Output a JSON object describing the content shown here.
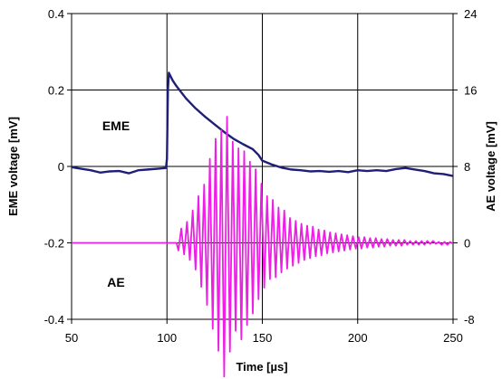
{
  "chart_data": {
    "type": "line",
    "xlabel": "Time [µs]",
    "ylabel_left": "EME voltage [mV]",
    "ylabel_right": "AE voltage [mV]",
    "xlim": [
      50,
      250
    ],
    "ylim_left": [
      -0.4,
      0.4
    ],
    "ylim_right": [
      -8,
      24
    ],
    "x_ticks": [
      "50",
      "100",
      "150",
      "200",
      "250"
    ],
    "y_left_ticks": [
      "0.4",
      "0.2",
      "0",
      "-0.2",
      "-0.4"
    ],
    "y_right_ticks": [
      "24",
      "16",
      "8",
      "0",
      "-8"
    ],
    "grid": true,
    "annotations": [
      "EME",
      "AE"
    ],
    "series": [
      {
        "axis": "left",
        "color": "#1f1f7a",
        "points": [
          [
            50,
            -0.002
          ],
          [
            55,
            -0.006
          ],
          [
            60,
            -0.01
          ],
          [
            65,
            -0.016
          ],
          [
            70,
            -0.013
          ],
          [
            75,
            -0.012
          ],
          [
            80,
            -0.018
          ],
          [
            85,
            -0.01
          ],
          [
            90,
            -0.008
          ],
          [
            95,
            -0.006
          ],
          [
            99.5,
            -0.004
          ],
          [
            100,
            0.02
          ],
          [
            100.5,
            0.2
          ],
          [
            101,
            0.245
          ],
          [
            103,
            0.225
          ],
          [
            105,
            0.21
          ],
          [
            110,
            0.178
          ],
          [
            115,
            0.152
          ],
          [
            120,
            0.13
          ],
          [
            125,
            0.11
          ],
          [
            130,
            0.09
          ],
          [
            135,
            0.072
          ],
          [
            140,
            0.058
          ],
          [
            145,
            0.045
          ],
          [
            148,
            0.03
          ],
          [
            150,
            0.015
          ],
          [
            155,
            0.005
          ],
          [
            160,
            -0.003
          ],
          [
            165,
            -0.008
          ],
          [
            170,
            -0.01
          ],
          [
            175,
            -0.013
          ],
          [
            180,
            -0.012
          ],
          [
            185,
            -0.014
          ],
          [
            190,
            -0.012
          ],
          [
            195,
            -0.015
          ],
          [
            200,
            -0.01
          ],
          [
            205,
            -0.012
          ],
          [
            210,
            -0.01
          ],
          [
            215,
            -0.012
          ],
          [
            220,
            -0.007
          ],
          [
            225,
            -0.004
          ],
          [
            230,
            -0.008
          ],
          [
            235,
            -0.012
          ],
          [
            240,
            -0.018
          ],
          [
            245,
            -0.02
          ],
          [
            250,
            -0.025
          ]
        ]
      },
      {
        "axis": "right",
        "color": "#ee1ee6",
        "points": [
          [
            50,
            0
          ],
          [
            100,
            0
          ],
          [
            105,
            0
          ],
          [
            106,
            -0.8
          ],
          [
            107.5,
            1.5
          ],
          [
            109,
            -1.2
          ],
          [
            110.5,
            2.2
          ],
          [
            112,
            -1.8
          ],
          [
            113.5,
            3.4
          ],
          [
            115,
            -2.8
          ],
          [
            116.5,
            4.9
          ],
          [
            118,
            -4.6
          ],
          [
            119.5,
            6.1
          ],
          [
            121,
            -6.5
          ],
          [
            122.5,
            8.8
          ],
          [
            124,
            -9.0
          ],
          [
            125.5,
            10.9
          ],
          [
            127,
            -11.3
          ],
          [
            128.5,
            11.8
          ],
          [
            130,
            -14.0
          ],
          [
            131.5,
            13.2
          ],
          [
            133,
            -11.4
          ],
          [
            134.5,
            10.6
          ],
          [
            136,
            -9.2
          ],
          [
            137.5,
            9.9
          ],
          [
            139,
            -10.1
          ],
          [
            140.5,
            9.6
          ],
          [
            142,
            -8.6
          ],
          [
            143.5,
            8.5
          ],
          [
            145,
            -7.4
          ],
          [
            146.5,
            7.7
          ],
          [
            148,
            -5.9
          ],
          [
            149.5,
            6.2
          ],
          [
            151,
            -4.7
          ],
          [
            152.5,
            4.9
          ],
          [
            154,
            -3.8
          ],
          [
            155.5,
            4.5
          ],
          [
            157,
            -3.6
          ],
          [
            158.5,
            3.7
          ],
          [
            160,
            -3.1
          ],
          [
            161.5,
            3.4
          ],
          [
            163,
            -2.7
          ],
          [
            164.5,
            2.6
          ],
          [
            166,
            -2.4
          ],
          [
            167.5,
            2.3
          ],
          [
            169,
            -2.1
          ],
          [
            170.5,
            2.0
          ],
          [
            172,
            -1.8
          ],
          [
            173.5,
            1.8
          ],
          [
            175,
            -1.6
          ],
          [
            176.5,
            1.7
          ],
          [
            178,
            -1.4
          ],
          [
            179.5,
            1.4
          ],
          [
            181,
            -1.3
          ],
          [
            182.5,
            1.3
          ],
          [
            184,
            -1.1
          ],
          [
            185.5,
            1.1
          ],
          [
            187,
            -1.0
          ],
          [
            188.5,
            1.0
          ],
          [
            190,
            -0.9
          ],
          [
            191.5,
            0.9
          ],
          [
            193,
            -0.8
          ],
          [
            194.5,
            0.8
          ],
          [
            196,
            -0.7
          ],
          [
            197.5,
            0.7
          ],
          [
            199,
            -0.6
          ],
          [
            200.5,
            0.6
          ],
          [
            202,
            -0.6
          ],
          [
            203.5,
            0.6
          ],
          [
            205,
            -0.5
          ],
          [
            206.5,
            0.5
          ],
          [
            208,
            -0.5
          ],
          [
            209.5,
            0.5
          ],
          [
            211,
            -0.4
          ],
          [
            212.5,
            0.4
          ],
          [
            214,
            -0.4
          ],
          [
            215.5,
            0.4
          ],
          [
            217,
            -0.3
          ],
          [
            218.5,
            0.3
          ],
          [
            220,
            -0.3
          ],
          [
            221.5,
            0.3
          ],
          [
            223,
            -0.3
          ],
          [
            224.5,
            0.3
          ],
          [
            226,
            -0.2
          ],
          [
            227.5,
            0.2
          ],
          [
            229,
            -0.2
          ],
          [
            230.5,
            0.2
          ],
          [
            232,
            -0.2
          ],
          [
            233.5,
            0.2
          ],
          [
            235,
            -0.2
          ],
          [
            236.5,
            0.2
          ],
          [
            238,
            -0.1
          ],
          [
            239.5,
            0.2
          ],
          [
            241,
            -0.1
          ],
          [
            242.5,
            0.1
          ],
          [
            244,
            -0.2
          ],
          [
            245.5,
            0.1
          ],
          [
            247,
            -0.2
          ],
          [
            248.5,
            0.1
          ],
          [
            250,
            -0.1
          ]
        ]
      }
    ]
  }
}
